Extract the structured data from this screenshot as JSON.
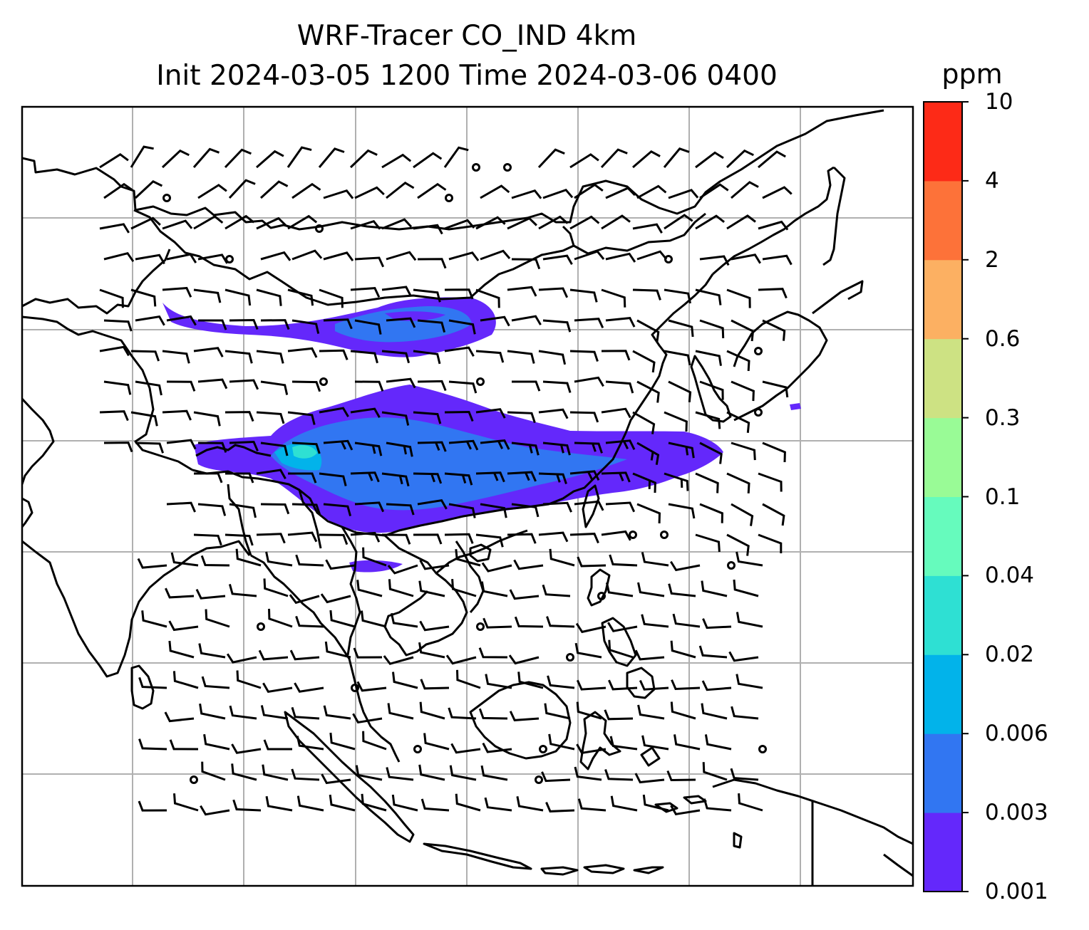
{
  "title": {
    "line1": "WRF-Tracer CO_IND 4km",
    "line2": "Init 2024-03-05 1200 Time 2024-03-06 0400"
  },
  "colorbar": {
    "unit": "ppm",
    "ticks": [
      "0.001",
      "0.003",
      "0.006",
      "0.02",
      "0.04",
      "0.1",
      "0.3",
      "0.6",
      "2",
      "4",
      "10"
    ],
    "colors": [
      "#6428fb",
      "#3176f2",
      "#02b3ea",
      "#2ee0d3",
      "#66fbbd",
      "#99fb96",
      "#cde283",
      "#fcb062",
      "#fd7239",
      "#fd2a17"
    ]
  },
  "map": {
    "gridlines": true,
    "content": "coastlines, country borders, wind barbs, CO_IND tracer plume over southern China"
  }
}
